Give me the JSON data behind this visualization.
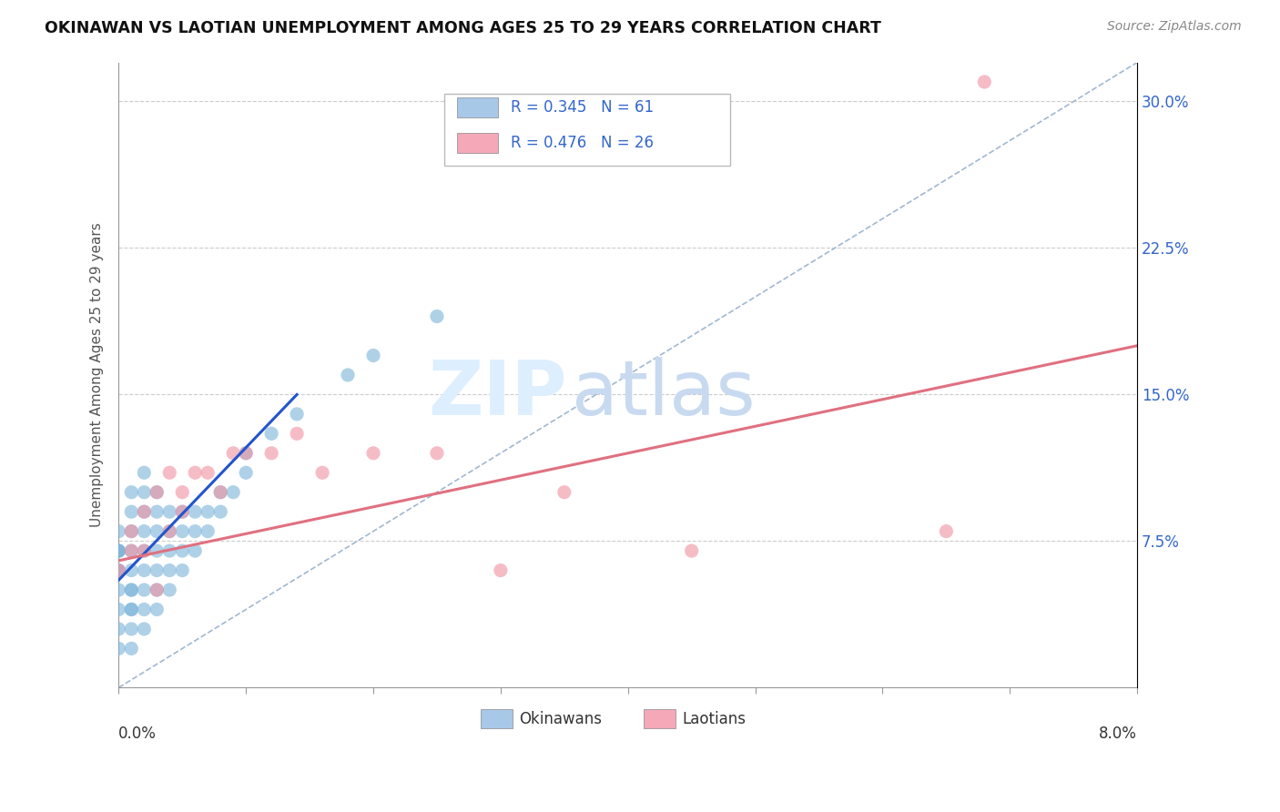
{
  "title": "OKINAWAN VS LAOTIAN UNEMPLOYMENT AMONG AGES 25 TO 29 YEARS CORRELATION CHART",
  "source": "Source: ZipAtlas.com",
  "ylabel": "Unemployment Among Ages 25 to 29 years",
  "ytick_labels": [
    "",
    "7.5%",
    "15.0%",
    "22.5%",
    "30.0%"
  ],
  "okinawan_color": "#7ab3d9",
  "laotian_color": "#f090a0",
  "trend_ok_color": "#2255cc",
  "trend_la_color": "#e07080",
  "diagonal_color": "#a0b8d0",
  "xmin": 0.0,
  "xmax": 0.08,
  "ymin": 0.0,
  "ymax": 0.32,
  "ok_R": "0.345",
  "ok_N": "61",
  "la_R": "0.476",
  "la_N": "26",
  "okinawan_x": [
    0.0,
    0.0,
    0.0,
    0.0,
    0.0,
    0.0,
    0.0,
    0.0,
    0.0,
    0.0,
    0.001,
    0.001,
    0.001,
    0.001,
    0.001,
    0.001,
    0.001,
    0.001,
    0.001,
    0.001,
    0.001,
    0.002,
    0.002,
    0.002,
    0.002,
    0.002,
    0.002,
    0.002,
    0.002,
    0.002,
    0.003,
    0.003,
    0.003,
    0.003,
    0.003,
    0.003,
    0.003,
    0.004,
    0.004,
    0.004,
    0.004,
    0.004,
    0.005,
    0.005,
    0.005,
    0.005,
    0.006,
    0.006,
    0.006,
    0.007,
    0.007,
    0.008,
    0.008,
    0.009,
    0.01,
    0.01,
    0.012,
    0.014,
    0.018,
    0.02,
    0.025
  ],
  "okinawan_y": [
    0.02,
    0.03,
    0.04,
    0.05,
    0.06,
    0.06,
    0.07,
    0.07,
    0.07,
    0.08,
    0.02,
    0.03,
    0.04,
    0.04,
    0.05,
    0.05,
    0.06,
    0.07,
    0.08,
    0.09,
    0.1,
    0.03,
    0.04,
    0.05,
    0.06,
    0.07,
    0.08,
    0.09,
    0.1,
    0.11,
    0.04,
    0.05,
    0.06,
    0.07,
    0.08,
    0.09,
    0.1,
    0.05,
    0.06,
    0.07,
    0.08,
    0.09,
    0.06,
    0.07,
    0.08,
    0.09,
    0.07,
    0.08,
    0.09,
    0.08,
    0.09,
    0.09,
    0.1,
    0.1,
    0.11,
    0.12,
    0.13,
    0.14,
    0.16,
    0.17,
    0.19
  ],
  "laotian_x": [
    0.0,
    0.001,
    0.001,
    0.002,
    0.002,
    0.003,
    0.003,
    0.004,
    0.004,
    0.005,
    0.005,
    0.006,
    0.007,
    0.008,
    0.009,
    0.01,
    0.012,
    0.014,
    0.016,
    0.02,
    0.025,
    0.03,
    0.035,
    0.045,
    0.065,
    0.068
  ],
  "laotian_y": [
    0.06,
    0.07,
    0.08,
    0.09,
    0.07,
    0.1,
    0.05,
    0.11,
    0.08,
    0.09,
    0.1,
    0.11,
    0.11,
    0.1,
    0.12,
    0.12,
    0.12,
    0.13,
    0.11,
    0.12,
    0.12,
    0.06,
    0.1,
    0.07,
    0.08,
    0.31
  ],
  "ok_trend_x": [
    0.0,
    0.014
  ],
  "ok_trend_y": [
    0.055,
    0.15
  ],
  "la_trend_x": [
    0.0,
    0.08
  ],
  "la_trend_y": [
    0.065,
    0.175
  ]
}
